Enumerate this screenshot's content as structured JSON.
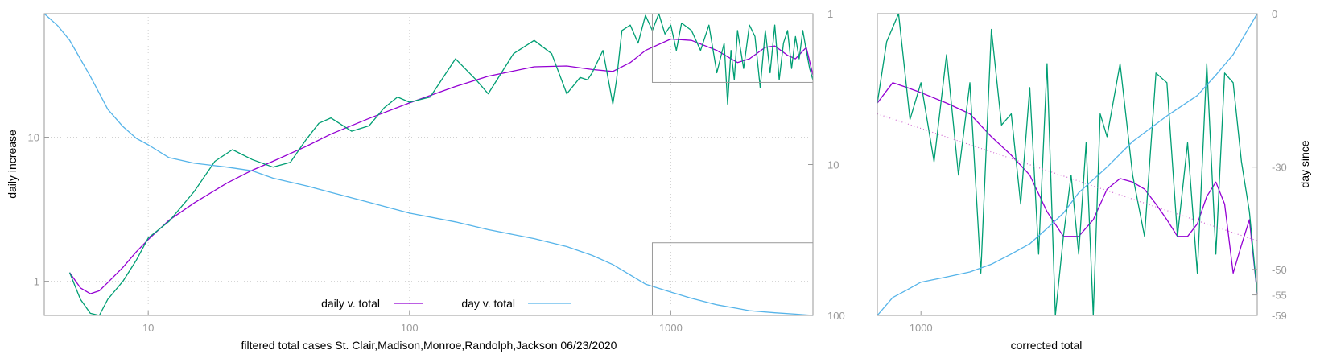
{
  "chart_data": [
    {
      "type": "line",
      "title": "",
      "xlabel": "filtered total cases St. Clair,Madison,Monroe,Randolph,Jackson 06/23/2020",
      "ylabel": "daily increase",
      "y2label": "",
      "xscale": "log",
      "yscale": "log",
      "y2scale": "log",
      "xlim": [
        4,
        3500
      ],
      "ylim": [
        0.58,
        72
      ],
      "y2lim": [
        1,
        100
      ],
      "y2_reversed": true,
      "x_ticks": [
        "10",
        "100",
        "1000"
      ],
      "y_ticks": [
        "1",
        "10"
      ],
      "y2_ticks": [
        "1",
        "10",
        "100"
      ],
      "grid": true,
      "legend_position": "bottom-center",
      "colors": {
        "smooth": "#9400d3",
        "raw": "#009e73",
        "day": "#56b4e9",
        "frame": "#9a9a9a"
      },
      "zoom_box_ylim": [
        24,
        72
      ],
      "zoom_box_y2lim": [
        33,
        100
      ],
      "zoom_box_xlim": [
        850,
        3500
      ],
      "series": [
        {
          "name": "daily v. total",
          "axis": "y",
          "x": [
            5,
            5.5,
            6,
            6.5,
            7,
            8,
            9,
            10,
            12,
            15,
            20,
            25,
            30,
            40,
            50,
            70,
            100,
            150,
            200,
            300,
            400,
            500,
            600,
            700,
            800,
            1000,
            1200,
            1500,
            1800,
            2000,
            2300,
            2500,
            2800,
            3000,
            3300,
            3500
          ],
          "y": [
            1.15,
            0.9,
            0.82,
            0.86,
            0.98,
            1.25,
            1.6,
            1.95,
            2.65,
            3.5,
            4.8,
            5.9,
            6.8,
            8.6,
            10.5,
            13.5,
            17.3,
            22.5,
            26.5,
            30.8,
            31.2,
            29.5,
            28.6,
            33,
            40,
            48,
            47,
            40,
            33,
            35,
            42,
            43,
            37,
            35,
            42,
            27
          ]
        },
        {
          "name": "",
          "axis": "y",
          "x": [
            5,
            5.5,
            6,
            6.5,
            7,
            8,
            9,
            10,
            12,
            15,
            18,
            21,
            25,
            30,
            35,
            40,
            45,
            50,
            60,
            70,
            80,
            90,
            100,
            120,
            150,
            180,
            200,
            250,
            300,
            350,
            400,
            450,
            480,
            500,
            550,
            600,
            620,
            650,
            700,
            750,
            800,
            850,
            900,
            950,
            1000,
            1050,
            1100,
            1200,
            1300,
            1400,
            1500,
            1600,
            1650,
            1700,
            1750,
            1800,
            1900,
            2000,
            2100,
            2200,
            2300,
            2400,
            2500,
            2600,
            2700,
            2800,
            2900,
            3000,
            3100,
            3200,
            3300,
            3400,
            3500
          ],
          "y": [
            1.15,
            0.75,
            0.6,
            0.58,
            0.75,
            1.0,
            1.4,
            2.0,
            2.6,
            4.2,
            6.8,
            8.2,
            7.0,
            6.2,
            6.7,
            9.5,
            12.5,
            13.6,
            11.0,
            12.0,
            16,
            19,
            17.5,
            19,
            35,
            25,
            20,
            38,
            47,
            38,
            20,
            26,
            25,
            28,
            40,
            17,
            25,
            55,
            60,
            45,
            70,
            55,
            72,
            52,
            60,
            40,
            62,
            55,
            40,
            60,
            28,
            45,
            17,
            40,
            25,
            55,
            30,
            60,
            50,
            22,
            55,
            28,
            60,
            25,
            45,
            55,
            30,
            50,
            35,
            55,
            40,
            30,
            25
          ]
        },
        {
          "name": "day v. total",
          "axis": "y2",
          "x": [
            4,
            4.5,
            5,
            6,
            7,
            8,
            9,
            10,
            12,
            15,
            20,
            25,
            30,
            40,
            50,
            70,
            100,
            150,
            200,
            300,
            400,
            500,
            600,
            700,
            800,
            1000,
            1200,
            1500,
            1800,
            2000,
            2500,
            3000,
            3500
          ],
          "y": [
            1,
            1.2,
            1.5,
            2.6,
            4.3,
            5.6,
            6.7,
            7.4,
            9.0,
            9.8,
            10.4,
            11.0,
            12.3,
            13.8,
            15.3,
            17.8,
            21,
            24,
            27,
            31,
            35,
            40,
            46,
            54,
            62,
            70,
            77,
            85,
            90,
            93,
            96,
            98,
            100
          ]
        }
      ]
    },
    {
      "type": "line",
      "title": "",
      "xlabel": "corrected total",
      "ylabel": "",
      "y2label": "day since",
      "xscale": "log",
      "yscale": "log",
      "xlim": [
        850,
        3500
      ],
      "ylim": [
        24,
        72
      ],
      "y2lim": [
        -59,
        0
      ],
      "x_ticks": [
        "1000"
      ],
      "y2_ticks": [
        "0",
        "-30",
        "-50",
        "-55",
        "-59"
      ],
      "grid": false,
      "colors": {
        "smooth": "#9400d3",
        "raw": "#009e73",
        "day": "#56b4e9",
        "fit": "#d066d0",
        "frame": "#9a9a9a"
      },
      "series": [
        {
          "name": "",
          "axis": "y",
          "x": [
            850,
            900,
            950,
            1000,
            1100,
            1200,
            1300,
            1400,
            1500,
            1600,
            1700,
            1800,
            1900,
            2000,
            2100,
            2200,
            2300,
            2400,
            2500,
            2600,
            2700,
            2800,
            2900,
            3000,
            3100,
            3200,
            3300,
            3400,
            3500
          ],
          "y": [
            52,
            56,
            55,
            54,
            52,
            50,
            46,
            43,
            40,
            35,
            32,
            32,
            34,
            38,
            39.5,
            39,
            38,
            36,
            34,
            32,
            32,
            33.5,
            37,
            39,
            36,
            28,
            31,
            34,
            26
          ]
        },
        {
          "name": "",
          "axis": "y",
          "x": [
            850,
            880,
            920,
            960,
            1000,
            1050,
            1100,
            1150,
            1200,
            1250,
            1300,
            1350,
            1400,
            1450,
            1500,
            1550,
            1600,
            1650,
            1700,
            1750,
            1800,
            1850,
            1900,
            1950,
            2000,
            2100,
            2200,
            2300,
            2400,
            2500,
            2600,
            2700,
            2800,
            2900,
            3000,
            3100,
            3200,
            3300,
            3400,
            3500
          ],
          "y": [
            52,
            65,
            72,
            49,
            56,
            42,
            62,
            40,
            56,
            28,
            68,
            48,
            50,
            36,
            55,
            30,
            60,
            24,
            32,
            40,
            30,
            45,
            24,
            50,
            46,
            60,
            40,
            32,
            58,
            56,
            32,
            45,
            28,
            60,
            30,
            58,
            56,
            42,
            35,
            26
          ]
        },
        {
          "name": "",
          "axis": "y",
          "style": "dotted",
          "x": [
            850,
            3500
          ],
          "y": [
            50,
            31.5
          ]
        },
        {
          "name": "",
          "axis": "y2",
          "x": [
            850,
            900,
            950,
            1000,
            1100,
            1200,
            1300,
            1400,
            1500,
            1600,
            1700,
            1800,
            2000,
            2200,
            2500,
            2800,
            3000,
            3200,
            3500
          ],
          "y": [
            -59,
            -55.5,
            -54,
            -52.5,
            -51.5,
            -50.5,
            -49,
            -47,
            -45,
            -42,
            -39,
            -35,
            -30,
            -25,
            -20,
            -16,
            -12,
            -8,
            0
          ]
        }
      ]
    }
  ]
}
